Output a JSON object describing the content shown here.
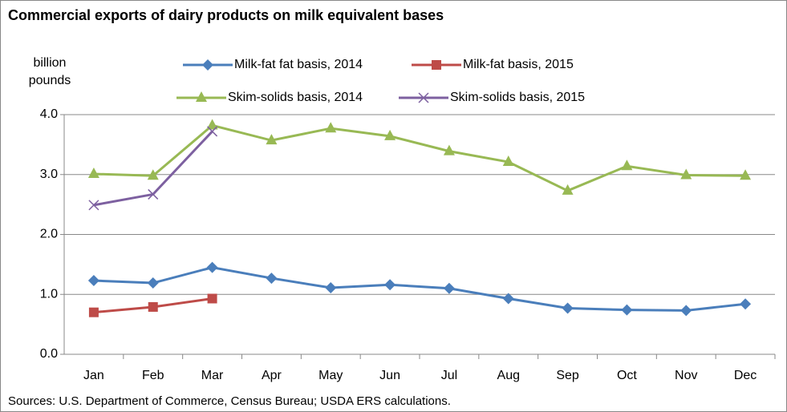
{
  "chart_data": {
    "type": "line",
    "title": "Commercial exports of dairy products on milk equivalent bases",
    "y_label": "billion pounds",
    "source": "Sources: U.S. Department of Commerce, Census Bureau; USDA ERS calculations.",
    "categories": [
      "Jan",
      "Feb",
      "Mar",
      "Apr",
      "May",
      "Jun",
      "Jul",
      "Aug",
      "Sep",
      "Oct",
      "Nov",
      "Dec"
    ],
    "series": [
      {
        "name": "Milk-fat fat basis, 2014",
        "color": "#4a7ebb",
        "marker": "diamond",
        "values": [
          1.23,
          1.19,
          1.45,
          1.27,
          1.11,
          1.16,
          1.1,
          0.93,
          0.77,
          0.74,
          0.73,
          0.84
        ]
      },
      {
        "name": "Milk-fat basis, 2015",
        "color": "#be4b48",
        "marker": "square",
        "values": [
          0.7,
          0.79,
          0.93,
          null,
          null,
          null,
          null,
          null,
          null,
          null,
          null,
          null
        ]
      },
      {
        "name": "Skim-solids basis, 2014",
        "color": "#98b954",
        "marker": "triangle",
        "values": [
          3.01,
          2.98,
          3.82,
          3.57,
          3.77,
          3.64,
          3.39,
          3.21,
          2.73,
          3.14,
          2.99,
          2.98
        ]
      },
      {
        "name": "Skim-solids basis, 2015",
        "color": "#7d60a0",
        "marker": "x",
        "values": [
          2.49,
          2.67,
          3.72,
          null,
          null,
          null,
          null,
          null,
          null,
          null,
          null,
          null
        ]
      }
    ],
    "ylim": [
      0,
      4
    ],
    "yticks": [
      {
        "value": 0,
        "label": "0.0"
      },
      {
        "value": 1,
        "label": "1.0"
      },
      {
        "value": 2,
        "label": "2.0"
      },
      {
        "value": 3,
        "label": "3.0"
      },
      {
        "value": 4,
        "label": "4.0"
      }
    ],
    "grid": true,
    "legend": "top"
  }
}
